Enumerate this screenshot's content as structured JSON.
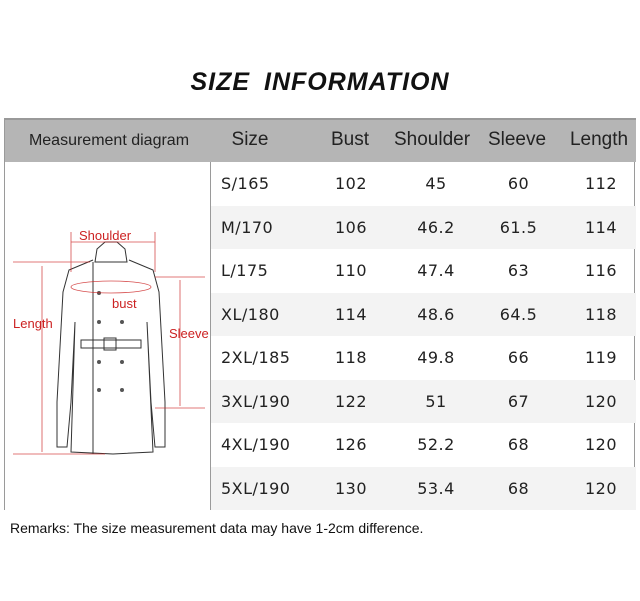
{
  "title": "SIZE  INFORMATION",
  "headers": [
    "Measurement diagram",
    "Size",
    "Bust",
    "Shoulder",
    "Sleeve",
    "Length"
  ],
  "diagram": {
    "shoulder": "Shoulder",
    "bust": "bust",
    "length": "Length",
    "sleeve": "Sleeve",
    "label_color": "#cc2222"
  },
  "rows": [
    [
      "S/165",
      "102",
      "45",
      "60",
      "112"
    ],
    [
      "M/170",
      "106",
      "46.2",
      "61.5",
      "114"
    ],
    [
      "L/175",
      "110",
      "47.4",
      "63",
      "116"
    ],
    [
      "XL/180",
      "114",
      "48.6",
      "64.5",
      "118"
    ],
    [
      "2XL/185",
      "118",
      "49.8",
      "66",
      "119"
    ],
    [
      "3XL/190",
      "122",
      "51",
      "67",
      "120"
    ],
    [
      "4XL/190",
      "126",
      "52.2",
      "68",
      "120"
    ],
    [
      "5XL/190",
      "130",
      "53.4",
      "68",
      "120"
    ]
  ],
  "remarks": "Remarks:  The size measurement data may have 1-2cm difference."
}
